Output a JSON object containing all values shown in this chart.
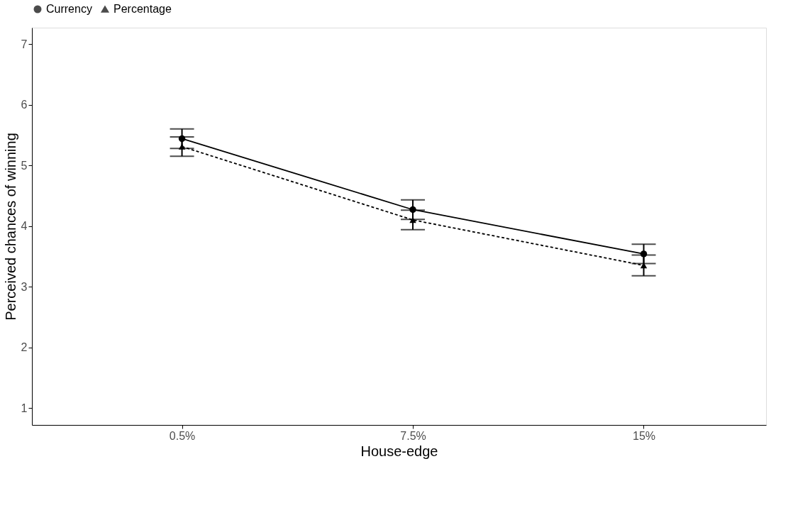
{
  "chart_data": {
    "type": "line",
    "xlabel": "House-edge",
    "ylabel": "Perceived chances of winning",
    "categories": [
      "0.5%",
      "7.5%",
      "15%"
    ],
    "series": [
      {
        "name": "Currency",
        "color": "#000000",
        "marker": "circle",
        "line_style": "solid",
        "values": [
          5.44,
          4.27,
          3.54
        ],
        "errors": [
          0.16,
          0.16,
          0.16
        ]
      },
      {
        "name": "Percentage",
        "color": "#000000",
        "marker": "triangle",
        "line_style": "dashed",
        "values": [
          5.31,
          4.1,
          3.35
        ],
        "errors": [
          0.16,
          0.16,
          0.17
        ]
      }
    ],
    "ylim": [
      0.72,
      7.27
    ],
    "yticks": [
      1,
      2,
      3,
      4,
      5,
      6,
      7
    ],
    "grid": false,
    "legend": "top"
  }
}
